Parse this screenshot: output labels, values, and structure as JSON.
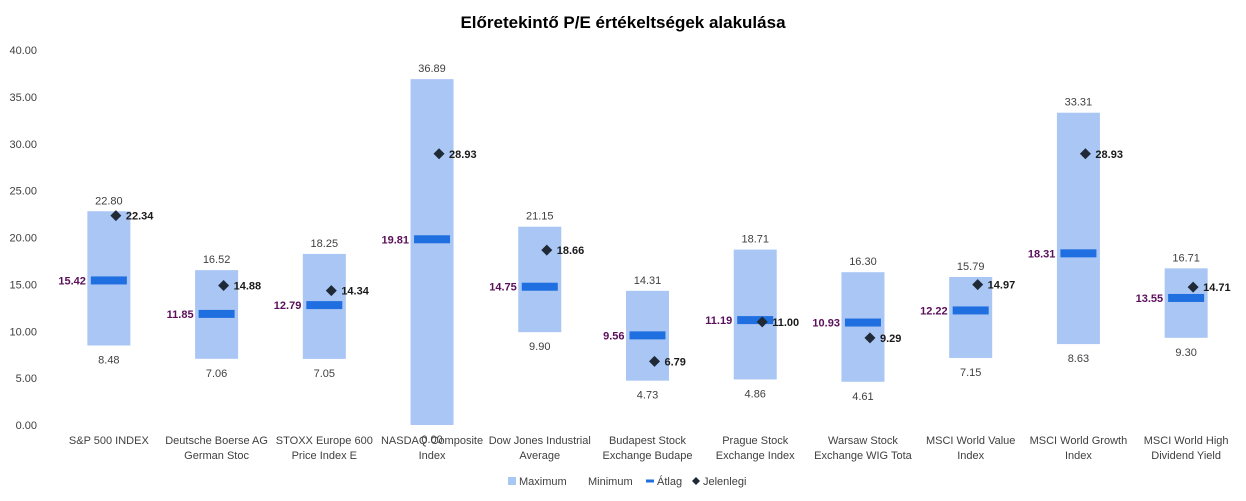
{
  "chart_data": {
    "type": "bar",
    "title": "Előretekintő P/E értékeltségek alakulása",
    "ylim": [
      0,
      40
    ],
    "ytick_labels": [
      "0.00",
      "5.00",
      "10.00",
      "15.00",
      "20.00",
      "25.00",
      "30.00",
      "35.00",
      "40.00"
    ],
    "categories": [
      [
        "S&P 500 INDEX"
      ],
      [
        "Deutsche Boerse AG",
        "German Stoc"
      ],
      [
        "STOXX Europe 600",
        "Price Index E"
      ],
      [
        "NASDAQ Composite",
        "Index"
      ],
      [
        "Dow Jones Industrial",
        "Average"
      ],
      [
        "Budapest Stock",
        "Exchange Budape"
      ],
      [
        "Prague Stock",
        "Exchange Index"
      ],
      [
        "Warsaw Stock",
        "Exchange WIG Tota"
      ],
      [
        "MSCI World Value",
        "Index"
      ],
      [
        "MSCI World Growth",
        "Index"
      ],
      [
        "MSCI World High",
        "Dividend Yield"
      ]
    ],
    "series": [
      {
        "name": "Maximum",
        "values": [
          22.8,
          16.52,
          18.25,
          36.89,
          21.15,
          14.31,
          18.71,
          16.3,
          15.79,
          33.31,
          16.71
        ]
      },
      {
        "name": "Minimum",
        "values": [
          8.48,
          7.06,
          7.05,
          0.0,
          9.9,
          4.73,
          4.86,
          4.61,
          7.15,
          8.63,
          9.3
        ]
      },
      {
        "name": "Átlag",
        "values": [
          15.42,
          11.85,
          12.79,
          19.81,
          14.75,
          9.56,
          11.19,
          10.93,
          12.22,
          18.31,
          13.55
        ]
      },
      {
        "name": "Jelenlegi",
        "values": [
          22.34,
          14.88,
          14.34,
          28.93,
          18.66,
          6.79,
          11.0,
          9.29,
          14.97,
          28.93,
          14.71
        ]
      }
    ],
    "legend_position": "bottom",
    "grid": false,
    "colors": {
      "range": "#a9c6f5",
      "average": "#1f6fe0",
      "current": "#1f2a36",
      "average_label": "#5a0f5a"
    }
  }
}
